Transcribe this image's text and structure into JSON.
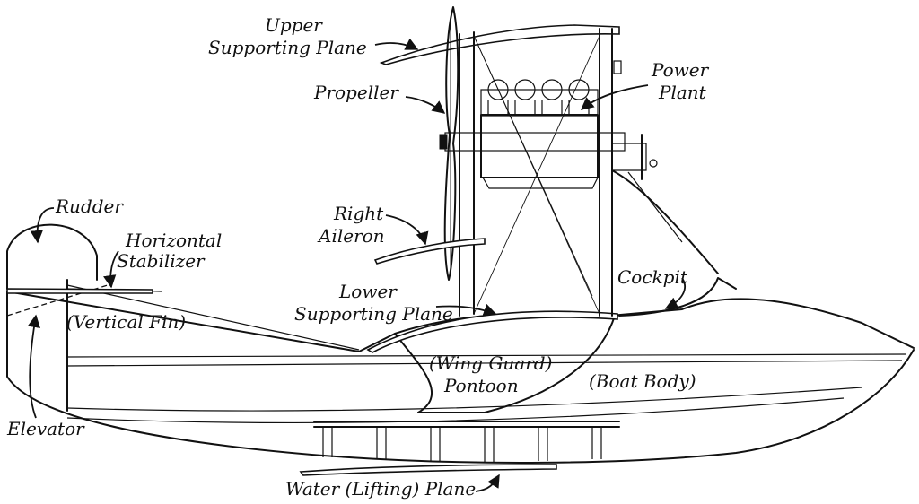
{
  "labels": {
    "upper_plane_1": "Upper",
    "upper_plane_2": "Supporting Plane",
    "propeller": "Propeller",
    "power_plant_1": "Power",
    "power_plant_2": "Plant",
    "rudder": "Rudder",
    "horizontal_stab_1": "Horizontal",
    "horizontal_stab_2": "Stabilizer",
    "right_aileron_1": "Right",
    "right_aileron_2": "Aileron",
    "cockpit": "Cockpit",
    "lower_plane_1": "Lower",
    "lower_plane_2": "Supporting Plane",
    "vertical_fin": "(Vertical Fin)",
    "wing_guard_1": "(Wing Guard)",
    "wing_guard_2": "Pontoon",
    "boat_body": "(Boat Body)",
    "elevator": "Elevator",
    "water_plane": "Water (Lifting) Plane"
  }
}
